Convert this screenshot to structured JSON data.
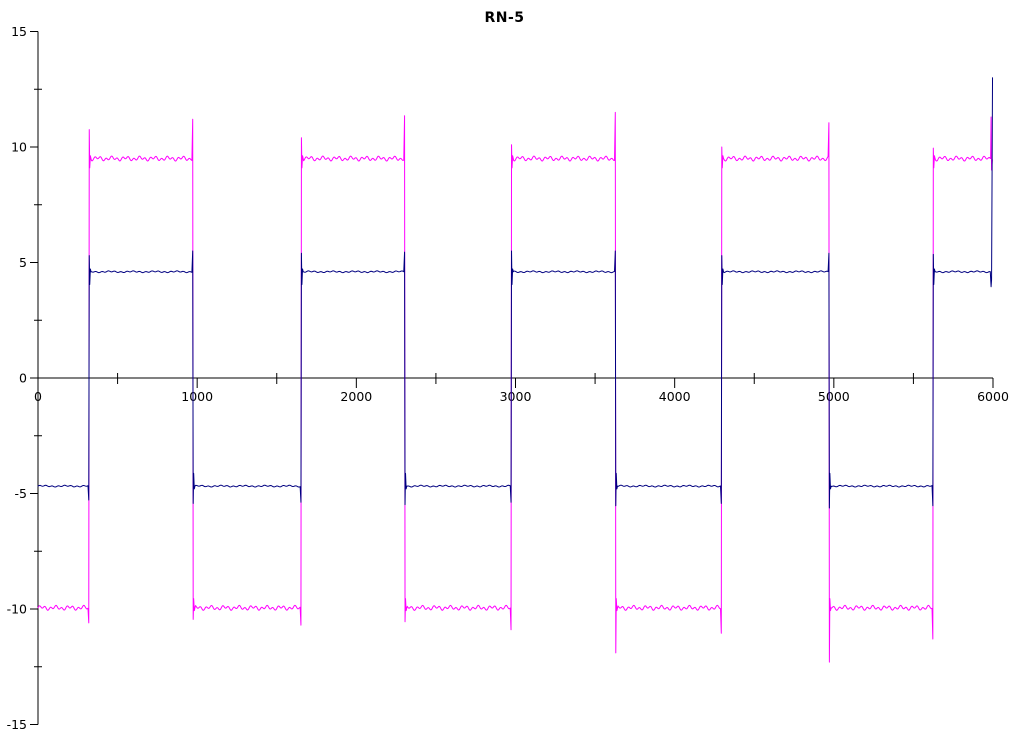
{
  "window": {
    "background": "#ffffff",
    "text_color": "#000000"
  },
  "chart_data": {
    "type": "line",
    "title": "RN-5",
    "xlabel": "",
    "ylabel": "",
    "xlim": [
      0,
      6000
    ],
    "ylim": [
      -15,
      15
    ],
    "grid": false,
    "legend": null,
    "axis_color": "#000000",
    "x_major_ticks": [
      0,
      1000,
      2000,
      3000,
      4000,
      5000,
      6000
    ],
    "x_major_labels": [
      "0",
      "1000",
      "2000",
      "3000",
      "4000",
      "5000",
      "6000"
    ],
    "x_minor_ticks": [
      500,
      1500,
      2500,
      3500,
      4500,
      5500
    ],
    "y_major_ticks": [
      15,
      10,
      5,
      0,
      -5,
      -10,
      -15
    ],
    "y_major_labels": [
      "15",
      "10",
      "5",
      "0",
      "-5",
      "-10",
      "-15"
    ],
    "y_minor_ticks": [
      12.5,
      7.5,
      2.5,
      -2.5,
      -7.5,
      -12.5
    ],
    "series": [
      {
        "name": "magenta-wave",
        "color": "#ff00ff",
        "shape": "square-wave-with-ringing",
        "hi": 9.5,
        "lo": -9.95,
        "start": "lo",
        "post_ring": 0.4,
        "ripple": {
          "a1": 0.06,
          "f1": 0.18,
          "a2": 0.05,
          "f2": 0.071
        },
        "transitions": [
          {
            "x": 322,
            "dir": 1,
            "pre": 0.65,
            "over": 1.25
          },
          {
            "x": 975,
            "dir": -1,
            "pre": 1.7,
            "over": 0.5
          },
          {
            "x": 1655,
            "dir": 1,
            "pre": 0.75,
            "over": 0.9
          },
          {
            "x": 2306,
            "dir": -1,
            "pre": 1.85,
            "over": 0.6
          },
          {
            "x": 2975,
            "dir": 1,
            "pre": 0.95,
            "over": 0.6
          },
          {
            "x": 3630,
            "dir": -1,
            "pre": 2.0,
            "over": 1.95
          },
          {
            "x": 4296,
            "dir": 1,
            "pre": 1.1,
            "over": 0.5
          },
          {
            "x": 4972,
            "dir": -1,
            "pre": 1.55,
            "over": 2.35
          },
          {
            "x": 5625,
            "dir": 1,
            "pre": 1.35,
            "over": 0.45
          }
        ],
        "end_event": {
          "x": 5988,
          "spike": 11.3,
          "dip": 9.0,
          "order": "spike-first"
        }
      },
      {
        "name": "navy-wave",
        "color": "#000080",
        "shape": "square-wave-with-ringing",
        "hi": 4.6,
        "lo": -4.68,
        "start": "lo",
        "post_ring": 0.55,
        "ripple": {
          "a1": 0.022,
          "f1": 0.16,
          "a2": 0.018,
          "f2": 0.045
        },
        "transitions": [
          {
            "x": 322,
            "dir": 1,
            "pre": 0.6,
            "over": 0.7
          },
          {
            "x": 975,
            "dir": -1,
            "pre": 0.9,
            "over": 0.75
          },
          {
            "x": 1655,
            "dir": 1,
            "pre": 0.7,
            "over": 0.8
          },
          {
            "x": 2306,
            "dir": -1,
            "pre": 0.85,
            "over": 0.8
          },
          {
            "x": 2975,
            "dir": 1,
            "pre": 0.7,
            "over": 0.9
          },
          {
            "x": 3630,
            "dir": -1,
            "pre": 0.9,
            "over": 0.85
          },
          {
            "x": 4296,
            "dir": 1,
            "pre": 0.75,
            "over": 0.7
          },
          {
            "x": 4972,
            "dir": -1,
            "pre": 0.8,
            "over": 0.95
          },
          {
            "x": 5625,
            "dir": 1,
            "pre": 0.85,
            "over": 0.75
          }
        ],
        "end_event": {
          "x": 5990,
          "spike": 13.0,
          "dip": 3.95,
          "order": "dip-first"
        }
      }
    ]
  }
}
